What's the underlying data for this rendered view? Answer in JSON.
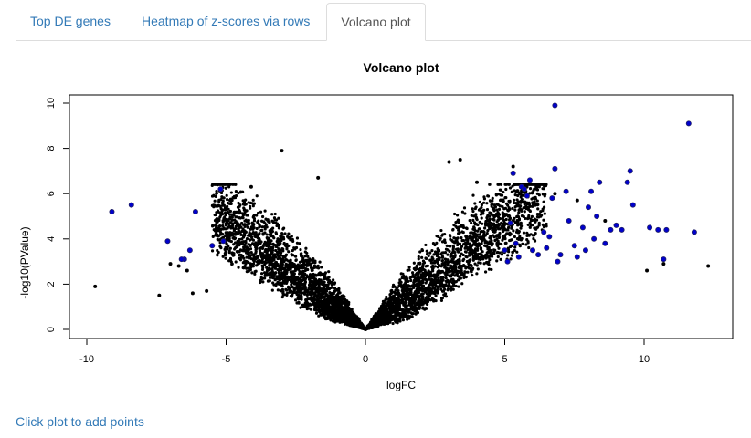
{
  "tabs": [
    {
      "label": "Top DE genes",
      "active": false
    },
    {
      "label": "Heatmap of z-scores via rows",
      "active": false
    },
    {
      "label": "Volcano plot",
      "active": true
    }
  ],
  "hint": "Click plot to add points",
  "colors": {
    "link": "#337ab7",
    "point": "#000000",
    "highlight": "#0000cc"
  },
  "chart_data": {
    "type": "scatter",
    "title": "Volcano plot",
    "xlabel": "logFC",
    "ylabel": "-log10(PValue)",
    "xlim": [
      -10,
      12.5
    ],
    "ylim": [
      0,
      10
    ],
    "xticks": [
      -10,
      -5,
      0,
      5,
      10
    ],
    "yticks": [
      0,
      2,
      4,
      6,
      8,
      10
    ],
    "grid": false,
    "series": [
      {
        "points": [
          [
            -9.7,
            1.9
          ],
          [
            -7.4,
            1.5
          ],
          [
            -7.0,
            2.9
          ],
          [
            -6.7,
            2.8
          ],
          [
            -6.4,
            2.6
          ],
          [
            -6.2,
            1.6
          ],
          [
            -5.7,
            1.7
          ],
          [
            -4.1,
            6.3
          ],
          [
            -3.0,
            7.9
          ],
          [
            -1.7,
            6.7
          ],
          [
            0.0,
            0.0
          ],
          [
            3.0,
            7.4
          ],
          [
            3.4,
            7.5
          ],
          [
            4.0,
            6.5
          ],
          [
            5.3,
            7.2
          ],
          [
            6.8,
            6.0
          ],
          [
            7.6,
            5.7
          ],
          [
            8.6,
            4.8
          ],
          [
            10.1,
            2.6
          ],
          [
            10.7,
            2.9
          ],
          [
            12.3,
            2.8
          ]
        ],
        "color": "#000000"
      },
      {
        "points": [
          [
            -9.1,
            5.2
          ],
          [
            -8.4,
            5.5
          ],
          [
            -7.1,
            3.9
          ],
          [
            -6.5,
            3.1
          ],
          [
            -6.6,
            3.1
          ],
          [
            -6.3,
            3.5
          ],
          [
            -6.1,
            5.2
          ],
          [
            -5.5,
            3.7
          ],
          [
            -5.2,
            6.2
          ],
          [
            -5.1,
            3.9
          ],
          [
            5.0,
            3.5
          ],
          [
            5.1,
            3.0
          ],
          [
            5.2,
            4.7
          ],
          [
            5.3,
            6.9
          ],
          [
            5.4,
            3.8
          ],
          [
            5.5,
            3.2
          ],
          [
            5.6,
            6.3
          ],
          [
            5.7,
            6.2
          ],
          [
            5.8,
            5.9
          ],
          [
            5.9,
            6.6
          ],
          [
            6.0,
            3.5
          ],
          [
            6.2,
            3.3
          ],
          [
            6.4,
            4.3
          ],
          [
            6.5,
            3.6
          ],
          [
            6.6,
            4.1
          ],
          [
            6.7,
            5.8
          ],
          [
            6.8,
            7.1
          ],
          [
            6.8,
            9.9
          ],
          [
            6.9,
            3.0
          ],
          [
            7.0,
            3.3
          ],
          [
            7.2,
            6.1
          ],
          [
            7.3,
            4.8
          ],
          [
            7.5,
            3.7
          ],
          [
            7.6,
            3.2
          ],
          [
            7.8,
            4.5
          ],
          [
            7.9,
            3.5
          ],
          [
            8.0,
            5.4
          ],
          [
            8.1,
            6.1
          ],
          [
            8.2,
            4.0
          ],
          [
            8.3,
            5.0
          ],
          [
            8.4,
            6.5
          ],
          [
            8.6,
            3.8
          ],
          [
            8.8,
            4.4
          ],
          [
            9.0,
            4.6
          ],
          [
            9.2,
            4.4
          ],
          [
            9.4,
            6.5
          ],
          [
            9.5,
            7.0
          ],
          [
            9.6,
            5.5
          ],
          [
            10.2,
            4.5
          ],
          [
            10.5,
            4.4
          ],
          [
            10.7,
            3.1
          ],
          [
            10.8,
            4.4
          ],
          [
            11.6,
            9.1
          ],
          [
            11.8,
            4.3
          ]
        ],
        "color": "#0000cc"
      }
    ]
  }
}
